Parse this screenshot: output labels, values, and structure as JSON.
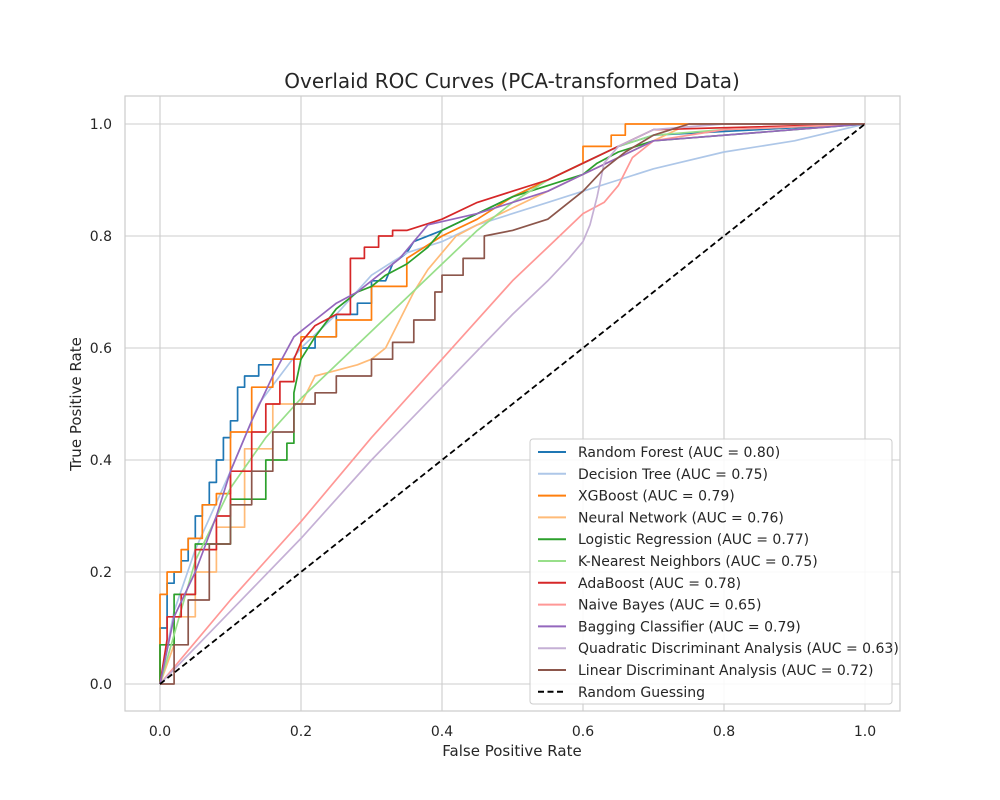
{
  "chart_data": {
    "type": "line",
    "title": "Overlaid ROC Curves (PCA-transformed Data)",
    "xlabel": "False Positive Rate",
    "ylabel": "True Positive Rate",
    "xlim": [
      -0.05,
      1.05
    ],
    "ylim": [
      -0.05,
      1.05
    ],
    "xticks": [
      "0.0",
      "0.2",
      "0.4",
      "0.6",
      "0.8",
      "1.0"
    ],
    "yticks": [
      "0.0",
      "0.2",
      "0.4",
      "0.6",
      "0.8",
      "1.0"
    ],
    "grid": true,
    "legend_position": "lower-right",
    "series": [
      {
        "name": "Random Forest (AUC = 0.80)",
        "color": "#1f77b4",
        "step": true,
        "x": [
          0,
          0,
          0.01,
          0.01,
          0.02,
          0.02,
          0.03,
          0.03,
          0.04,
          0.04,
          0.05,
          0.05,
          0.06,
          0.06,
          0.07,
          0.07,
          0.08,
          0.08,
          0.09,
          0.09,
          0.1,
          0.1,
          0.11,
          0.11,
          0.12,
          0.12,
          0.14,
          0.14,
          0.16,
          0.16,
          0.2,
          0.2,
          0.22,
          0.22,
          0.25,
          0.25,
          0.28,
          0.28,
          0.3,
          0.3,
          0.32,
          0.33,
          0.35,
          0.36,
          0.4,
          0.45,
          0.5,
          0.55,
          0.6,
          0.65,
          0.7,
          1.0
        ],
        "y": [
          0,
          0.1,
          0.1,
          0.18,
          0.18,
          0.2,
          0.2,
          0.22,
          0.22,
          0.26,
          0.26,
          0.3,
          0.3,
          0.32,
          0.32,
          0.36,
          0.36,
          0.4,
          0.4,
          0.44,
          0.44,
          0.47,
          0.47,
          0.53,
          0.53,
          0.55,
          0.55,
          0.57,
          0.57,
          0.58,
          0.58,
          0.6,
          0.6,
          0.62,
          0.62,
          0.66,
          0.66,
          0.68,
          0.68,
          0.72,
          0.72,
          0.75,
          0.77,
          0.79,
          0.81,
          0.84,
          0.87,
          0.9,
          0.93,
          0.96,
          0.98,
          1.0
        ]
      },
      {
        "name": "Decision Tree (AUC = 0.75)",
        "color": "#aec7e8",
        "step": false,
        "x": [
          0,
          0.02,
          0.05,
          0.1,
          0.14,
          0.2,
          0.25,
          0.3,
          0.35,
          0.4,
          0.45,
          0.5,
          0.55,
          0.6,
          0.65,
          0.7,
          0.8,
          0.9,
          1.0
        ],
        "y": [
          0,
          0.13,
          0.24,
          0.38,
          0.5,
          0.6,
          0.66,
          0.73,
          0.77,
          0.79,
          0.82,
          0.84,
          0.86,
          0.88,
          0.9,
          0.92,
          0.95,
          0.97,
          1.0
        ]
      },
      {
        "name": "XGBoost (AUC = 0.79)",
        "color": "#ff7f0e",
        "step": true,
        "x": [
          0,
          0,
          0.01,
          0.01,
          0.03,
          0.03,
          0.04,
          0.04,
          0.06,
          0.06,
          0.08,
          0.08,
          0.1,
          0.1,
          0.13,
          0.13,
          0.16,
          0.16,
          0.2,
          0.2,
          0.25,
          0.25,
          0.3,
          0.3,
          0.35,
          0.35,
          0.4,
          0.45,
          0.5,
          0.55,
          0.6,
          0.6,
          0.64,
          0.64,
          0.66,
          0.66,
          0.68,
          1.0
        ],
        "y": [
          0,
          0.16,
          0.16,
          0.2,
          0.2,
          0.24,
          0.24,
          0.26,
          0.26,
          0.32,
          0.32,
          0.34,
          0.34,
          0.45,
          0.45,
          0.53,
          0.53,
          0.58,
          0.58,
          0.62,
          0.62,
          0.65,
          0.65,
          0.71,
          0.71,
          0.76,
          0.8,
          0.83,
          0.87,
          0.9,
          0.93,
          0.96,
          0.96,
          0.98,
          0.98,
          1.0,
          1.0,
          1.0
        ]
      },
      {
        "name": "Neural Network (AUC = 0.76)",
        "color": "#ffbb78",
        "step": true,
        "x": [
          0,
          0.02,
          0.02,
          0.05,
          0.05,
          0.08,
          0.08,
          0.12,
          0.12,
          0.16,
          0.16,
          0.2,
          0.22,
          0.25,
          0.28,
          0.3,
          0.32,
          0.34,
          0.36,
          0.38,
          0.4,
          0.42,
          0.45,
          0.5,
          0.55,
          0.6,
          0.65,
          0.7,
          0.75,
          1.0
        ],
        "y": [
          0,
          0.07,
          0.12,
          0.12,
          0.2,
          0.2,
          0.28,
          0.28,
          0.42,
          0.42,
          0.5,
          0.5,
          0.55,
          0.56,
          0.57,
          0.58,
          0.6,
          0.65,
          0.7,
          0.74,
          0.77,
          0.8,
          0.82,
          0.85,
          0.88,
          0.91,
          0.94,
          0.97,
          1.0,
          1.0
        ]
      },
      {
        "name": "Logistic Regression (AUC = 0.77)",
        "color": "#2ca02c",
        "step": true,
        "x": [
          0,
          0,
          0.02,
          0.02,
          0.05,
          0.05,
          0.1,
          0.1,
          0.15,
          0.15,
          0.18,
          0.18,
          0.19,
          0.19,
          0.2,
          0.22,
          0.25,
          0.28,
          0.3,
          0.32,
          0.35,
          0.38,
          0.4,
          0.45,
          0.5,
          0.55,
          0.6,
          0.62,
          0.65,
          0.7,
          1.0
        ],
        "y": [
          0,
          0.07,
          0.07,
          0.16,
          0.16,
          0.25,
          0.25,
          0.33,
          0.33,
          0.4,
          0.4,
          0.43,
          0.43,
          0.52,
          0.58,
          0.62,
          0.67,
          0.7,
          0.71,
          0.73,
          0.75,
          0.78,
          0.81,
          0.84,
          0.87,
          0.89,
          0.91,
          0.93,
          0.95,
          0.97,
          1.0
        ]
      },
      {
        "name": "K-Nearest Neighbors (AUC = 0.75)",
        "color": "#98df8a",
        "step": false,
        "x": [
          0,
          0.05,
          0.1,
          0.15,
          0.2,
          0.25,
          0.3,
          0.35,
          0.4,
          0.45,
          0.5,
          0.55,
          0.6,
          0.65,
          0.7,
          0.8,
          1.0
        ],
        "y": [
          0,
          0.22,
          0.35,
          0.44,
          0.51,
          0.57,
          0.63,
          0.69,
          0.75,
          0.81,
          0.86,
          0.9,
          0.93,
          0.96,
          0.98,
          0.99,
          1.0
        ]
      },
      {
        "name": "AdaBoost (AUC = 0.78)",
        "color": "#d62728",
        "step": true,
        "x": [
          0,
          0.01,
          0.01,
          0.03,
          0.03,
          0.05,
          0.05,
          0.08,
          0.08,
          0.1,
          0.1,
          0.13,
          0.13,
          0.15,
          0.15,
          0.17,
          0.17,
          0.19,
          0.19,
          0.2,
          0.22,
          0.25,
          0.27,
          0.27,
          0.29,
          0.29,
          0.31,
          0.31,
          0.33,
          0.33,
          0.35,
          0.35,
          0.4,
          0.45,
          0.5,
          0.55,
          0.6,
          0.65,
          0.7,
          1.0
        ],
        "y": [
          0,
          0.08,
          0.12,
          0.12,
          0.16,
          0.16,
          0.24,
          0.24,
          0.3,
          0.3,
          0.38,
          0.38,
          0.45,
          0.45,
          0.5,
          0.5,
          0.54,
          0.54,
          0.58,
          0.61,
          0.64,
          0.66,
          0.66,
          0.76,
          0.76,
          0.78,
          0.78,
          0.8,
          0.8,
          0.81,
          0.81,
          0.81,
          0.83,
          0.86,
          0.88,
          0.9,
          0.93,
          0.96,
          0.99,
          1.0
        ]
      },
      {
        "name": "Naive Bayes (AUC = 0.65)",
        "color": "#ff9896",
        "step": false,
        "x": [
          0,
          0.1,
          0.2,
          0.3,
          0.4,
          0.5,
          0.55,
          0.6,
          0.63,
          0.65,
          0.67,
          0.7,
          0.8,
          1.0
        ],
        "y": [
          0,
          0.15,
          0.29,
          0.44,
          0.58,
          0.72,
          0.78,
          0.84,
          0.86,
          0.89,
          0.94,
          0.97,
          0.99,
          1.0
        ]
      },
      {
        "name": "Bagging Classifier (AUC = 0.79)",
        "color": "#9467bd",
        "step": true,
        "x": [
          0,
          0.02,
          0.02,
          0.05,
          0.05,
          0.08,
          0.08,
          0.1,
          0.1,
          0.13,
          0.13,
          0.16,
          0.16,
          0.19,
          0.19,
          0.22,
          0.22,
          0.25,
          0.25,
          0.28,
          0.28,
          0.31,
          0.31,
          0.34,
          0.34,
          0.38,
          0.38,
          0.45,
          0.5,
          0.55,
          0.6,
          0.65,
          0.7,
          1.0
        ],
        "y": [
          0,
          0.12,
          0.12,
          0.2,
          0.2,
          0.3,
          0.3,
          0.38,
          0.38,
          0.47,
          0.47,
          0.55,
          0.55,
          0.62,
          0.62,
          0.65,
          0.65,
          0.68,
          0.68,
          0.7,
          0.7,
          0.73,
          0.73,
          0.76,
          0.76,
          0.82,
          0.82,
          0.84,
          0.86,
          0.88,
          0.91,
          0.94,
          0.97,
          1.0
        ]
      },
      {
        "name": "Quadratic Discriminant Analysis (AUC = 0.63)",
        "color": "#c5b0d5",
        "step": false,
        "x": [
          0,
          0.1,
          0.2,
          0.3,
          0.4,
          0.5,
          0.55,
          0.58,
          0.6,
          0.61,
          0.62,
          0.63,
          0.65,
          0.7,
          0.8,
          1.0
        ],
        "y": [
          0,
          0.13,
          0.26,
          0.4,
          0.53,
          0.66,
          0.72,
          0.76,
          0.79,
          0.82,
          0.87,
          0.93,
          0.96,
          0.99,
          1.0,
          1.0
        ]
      },
      {
        "name": "Linear Discriminant Analysis (AUC = 0.72)",
        "color": "#8c564b",
        "step": true,
        "x": [
          0,
          0.02,
          0.02,
          0.04,
          0.04,
          0.07,
          0.07,
          0.1,
          0.1,
          0.13,
          0.13,
          0.16,
          0.16,
          0.19,
          0.19,
          0.22,
          0.22,
          0.25,
          0.25,
          0.3,
          0.3,
          0.33,
          0.33,
          0.36,
          0.36,
          0.39,
          0.39,
          0.4,
          0.4,
          0.43,
          0.43,
          0.46,
          0.46,
          0.5,
          0.55,
          0.6,
          0.63,
          0.66,
          0.7,
          0.75,
          1.0
        ],
        "y": [
          0,
          0,
          0.07,
          0.07,
          0.15,
          0.15,
          0.25,
          0.25,
          0.32,
          0.32,
          0.38,
          0.38,
          0.45,
          0.45,
          0.5,
          0.5,
          0.52,
          0.52,
          0.55,
          0.55,
          0.58,
          0.58,
          0.61,
          0.61,
          0.65,
          0.65,
          0.7,
          0.7,
          0.73,
          0.73,
          0.76,
          0.76,
          0.8,
          0.81,
          0.83,
          0.88,
          0.92,
          0.95,
          0.98,
          1.0,
          1.0
        ]
      },
      {
        "name": "Random Guessing",
        "color": "#000000",
        "step": false,
        "dashed": true,
        "x": [
          0,
          1
        ],
        "y": [
          0,
          1
        ]
      }
    ]
  }
}
